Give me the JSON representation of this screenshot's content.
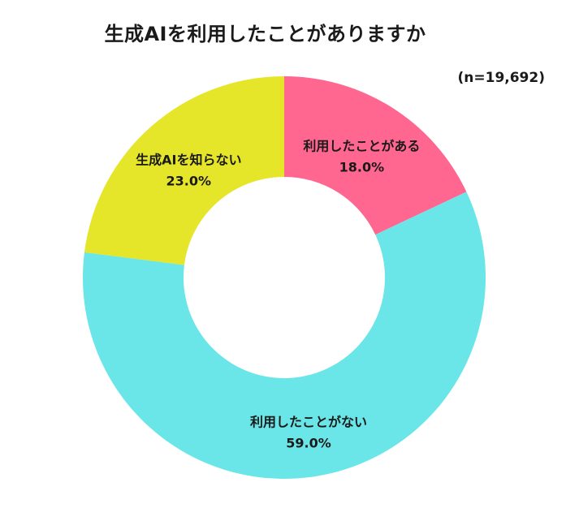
{
  "chart_data": {
    "type": "pie",
    "title": "生成AIを利用したことがありますか",
    "note": "(n=19,692)",
    "categories": [
      "利用したことがある",
      "利用したことがない",
      "生成AIを知らない"
    ],
    "values": [
      18.0,
      59.0,
      23.0
    ],
    "value_labels": [
      "18.0%",
      "59.0%",
      "23.0%"
    ],
    "colors": [
      "#ff6690",
      "#6ae6e8",
      "#e5e62a"
    ],
    "donut": true
  }
}
